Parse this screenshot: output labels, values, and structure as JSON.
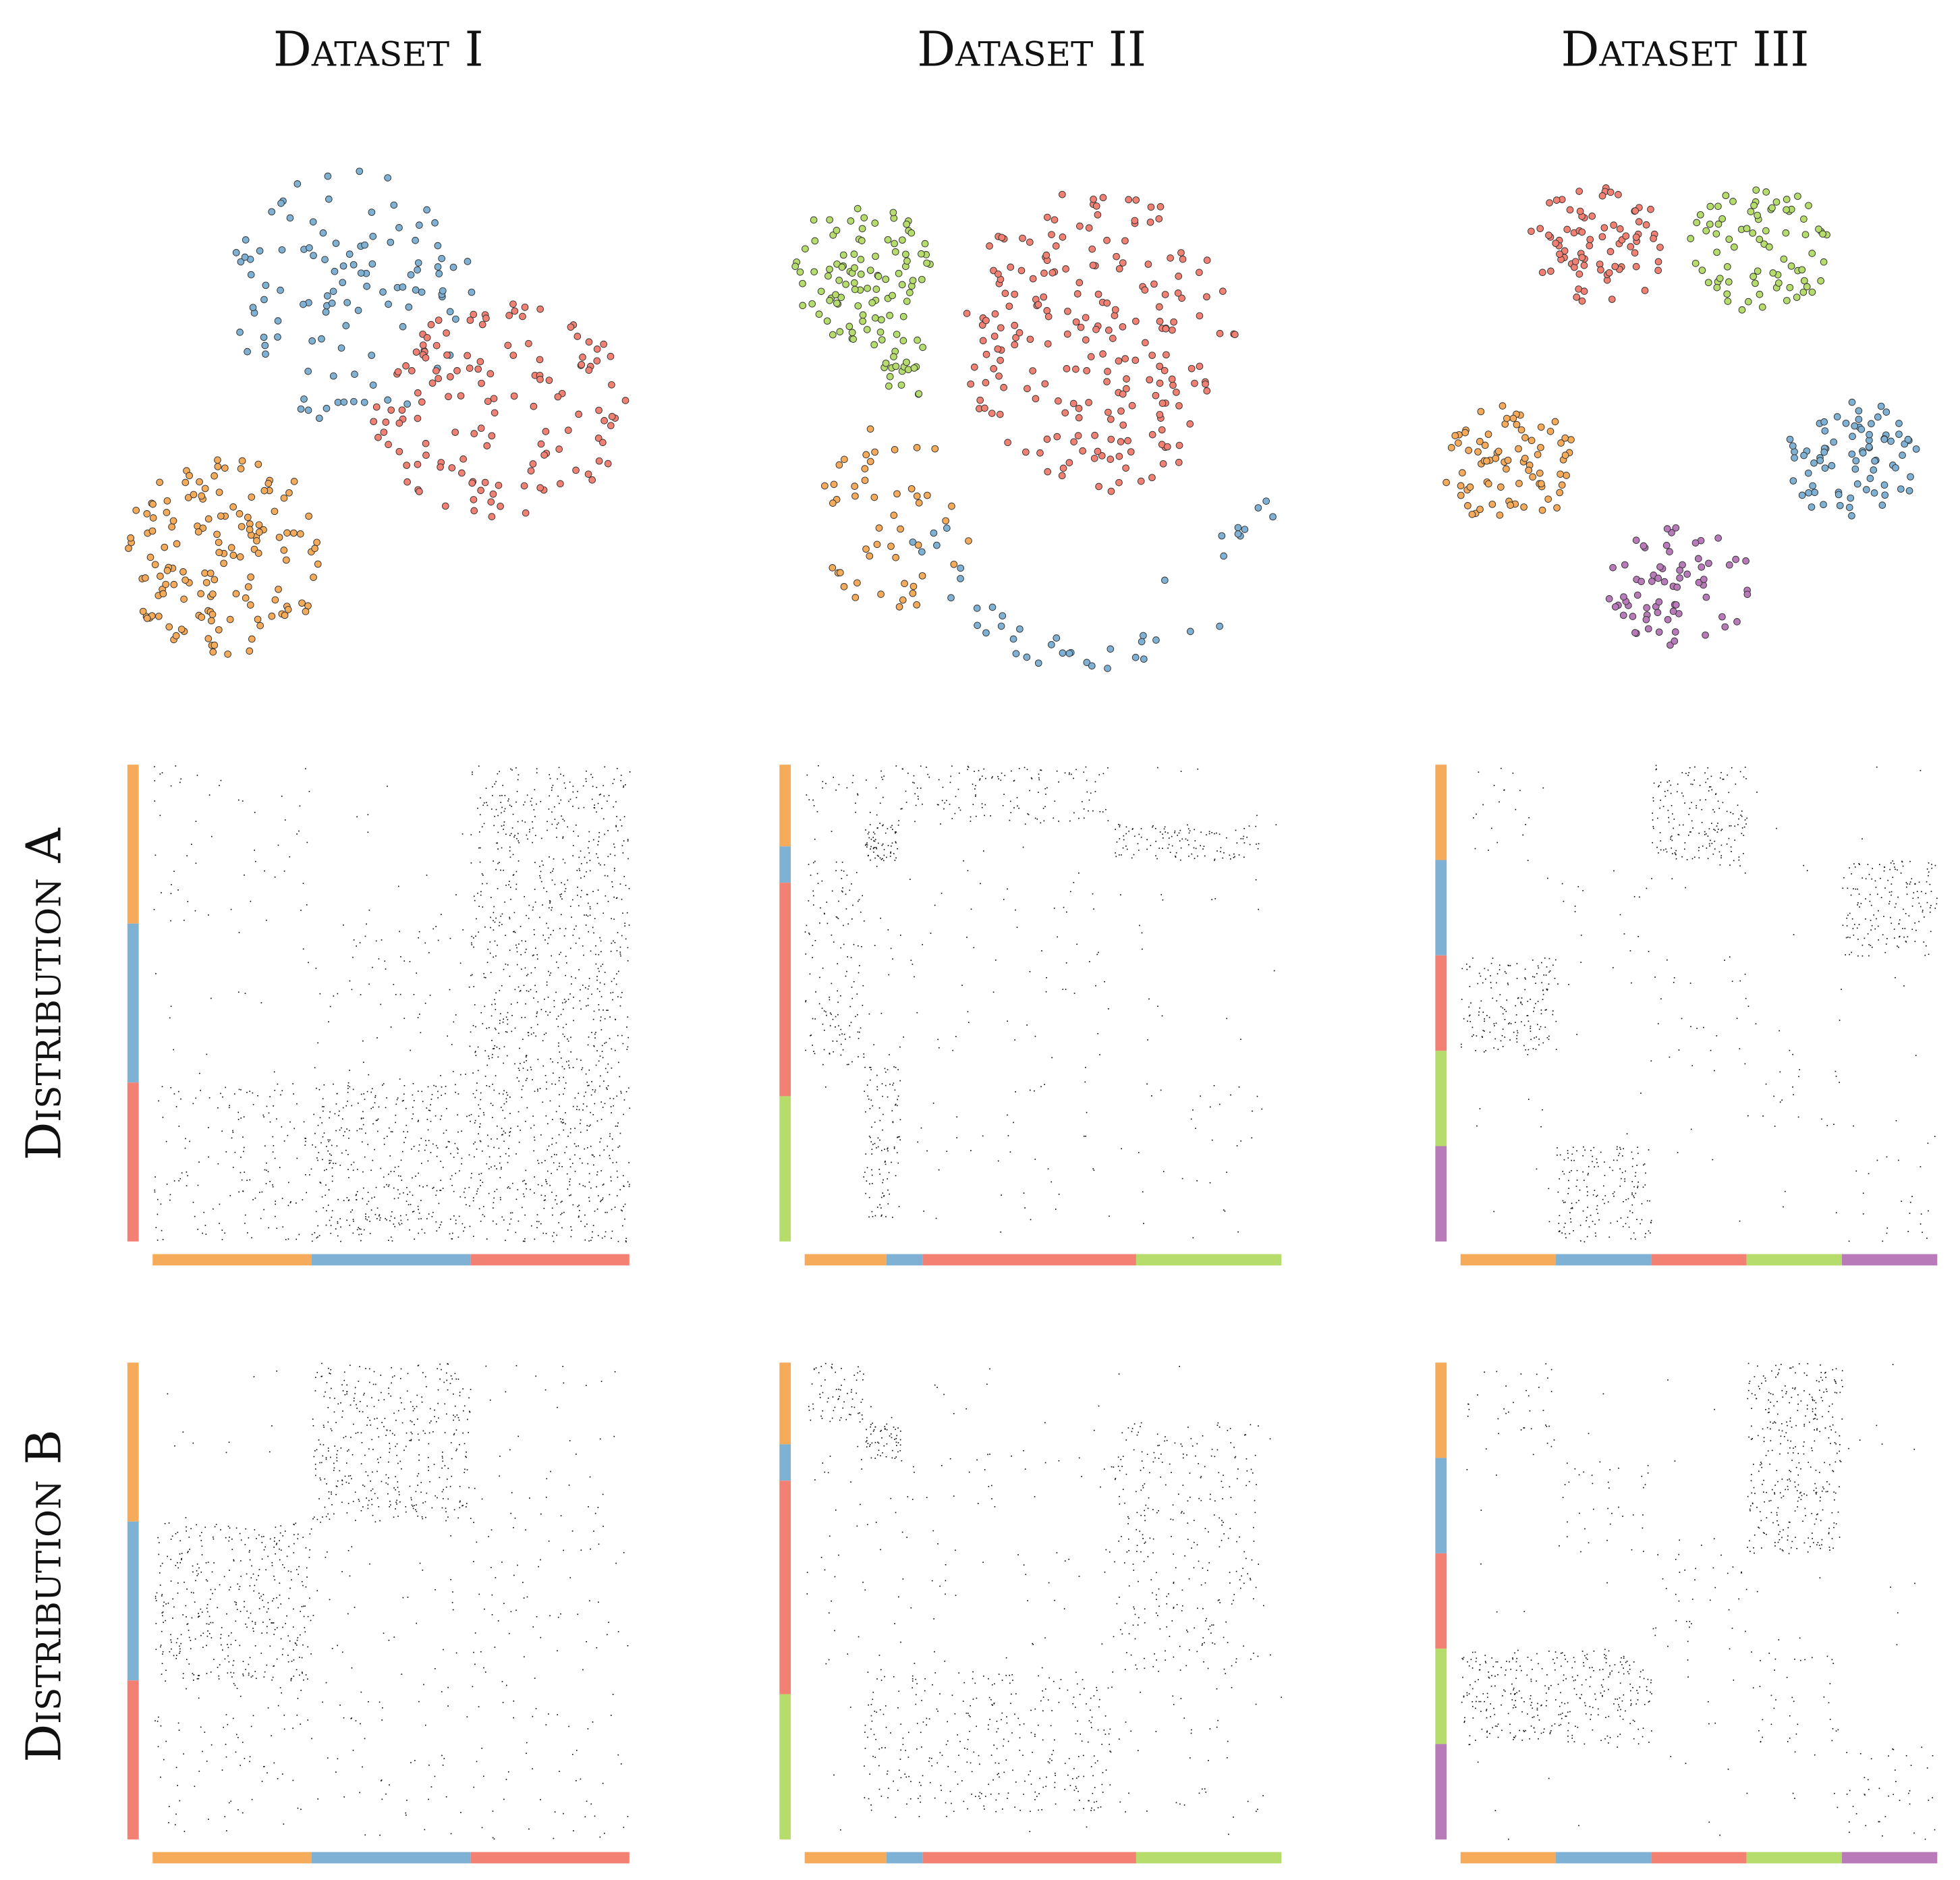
{
  "figure": {
    "col_titles": [
      "Dataset I",
      "Dataset II",
      "Dataset III"
    ],
    "row_titles": [
      "Distribution A",
      "Distribution B"
    ]
  },
  "colors": {
    "orange": "#f5ab5a",
    "blue": "#7eb1d3",
    "red": "#f38173",
    "green": "#b6dc6c",
    "purple": "#b87ab8",
    "dot": "#111111",
    "point_edge": "#333333"
  },
  "chart_data": [
    {
      "type": "scatter",
      "title": "Dataset I",
      "clusters": [
        {
          "color": "orange",
          "center": [
            180,
            440
          ],
          "spread": [
            82,
            82
          ],
          "n": 150
        },
        {
          "color": "blue",
          "center": [
            280,
            235
          ],
          "spread": [
            105,
            100
          ],
          "n": 110
        },
        {
          "color": "red",
          "center": [
            400,
            325
          ],
          "spread": [
            105,
            85
          ],
          "n": 140
        }
      ]
    },
    {
      "type": "scatter",
      "title": "Dataset II",
      "clusters": [
        {
          "color": "green",
          "center": [
            683,
            215
          ],
          "spread": [
            55,
            60
          ],
          "n": 100
        },
        {
          "color": "green",
          "center": [
            720,
            290
          ],
          "spread": [
            20,
            25
          ],
          "n": 20
        },
        {
          "color": "red",
          "center": [
            870,
            270
          ],
          "spread": [
            110,
            120
          ],
          "n": 220
        },
        {
          "color": "orange",
          "center": [
            710,
            410
          ],
          "spread": [
            60,
            75
          ],
          "n": 50
        },
        {
          "color": "blue",
          "type": "arc",
          "n": 45
        }
      ]
    },
    {
      "type": "scatter",
      "title": "Dataset III",
      "clusters": [
        {
          "color": "red",
          "center": [
            1268,
            193
          ],
          "spread": [
            58,
            50
          ],
          "n": 80
        },
        {
          "color": "green",
          "center": [
            1395,
            197
          ],
          "spread": [
            58,
            50
          ],
          "n": 80
        },
        {
          "color": "orange",
          "center": [
            1197,
            368
          ],
          "spread": [
            55,
            48
          ],
          "n": 80
        },
        {
          "color": "blue",
          "center": [
            1470,
            365
          ],
          "spread": [
            55,
            48
          ],
          "n": 80
        },
        {
          "color": "purple",
          "center": [
            1330,
            465
          ],
          "spread": [
            60,
            48
          ],
          "n": 70
        }
      ]
    },
    {
      "type": "heatmap",
      "row": "Distribution A",
      "dataset": "Dataset I",
      "segments": [
        {
          "color": "orange",
          "size": 1
        },
        {
          "color": "blue",
          "size": 1
        },
        {
          "color": "red",
          "size": 1
        }
      ],
      "blocks": [
        {
          "rows": [
            0,
            1
          ],
          "cols": [
            0,
            1
          ],
          "density": 0.05
        },
        {
          "rows": [
            0,
            3
          ],
          "cols": [
            2,
            3
          ],
          "density": 0.45
        },
        {
          "rows": [
            1,
            2
          ],
          "cols": [
            1,
            2
          ],
          "density": 0.08
        },
        {
          "rows": [
            2,
            3
          ],
          "cols": [
            0,
            1
          ],
          "density": 0.2
        },
        {
          "rows": [
            2,
            3
          ],
          "cols": [
            1,
            2
          ],
          "density": 0.5
        },
        {
          "rows": [
            2,
            3
          ],
          "cols": [
            2,
            3
          ],
          "density": 0.06
        }
      ]
    },
    {
      "type": "heatmap",
      "row": "Distribution A",
      "dataset": "Dataset II",
      "segments": [
        {
          "color": "orange",
          "size": 0.18
        },
        {
          "color": "blue",
          "size": 0.08
        },
        {
          "color": "red",
          "size": 0.47
        },
        {
          "color": "green",
          "size": 0.32
        }
      ],
      "blocks": [
        {
          "rows": [
            0,
            0.13
          ],
          "cols": [
            0,
            0.18
          ],
          "density": 0.2
        },
        {
          "rows": [
            0,
            0.13
          ],
          "cols": [
            0.2,
            0.68
          ],
          "density": 0.35
        },
        {
          "rows": [
            0.13,
            0.21
          ],
          "cols": [
            0.13,
            0.21
          ],
          "density": 1.6
        },
        {
          "rows": [
            0.13,
            0.21
          ],
          "cols": [
            0.68,
            1
          ],
          "density": 0.7
        },
        {
          "rows": [
            0.21,
            0.66
          ],
          "cols": [
            0,
            0.13
          ],
          "density": 0.35
        },
        {
          "rows": [
            0.21,
            0.68
          ],
          "cols": [
            0.13,
            0.68
          ],
          "density": 0.03
        },
        {
          "rows": [
            0.66,
            1
          ],
          "cols": [
            0.13,
            0.21
          ],
          "density": 0.6
        },
        {
          "rows": [
            0.66,
            1
          ],
          "cols": [
            0.21,
            1
          ],
          "density": 0.03
        }
      ]
    },
    {
      "type": "heatmap",
      "row": "Distribution A",
      "dataset": "Dataset III",
      "segments": [
        {
          "color": "orange",
          "size": 1
        },
        {
          "color": "blue",
          "size": 1
        },
        {
          "color": "red",
          "size": 1
        },
        {
          "color": "green",
          "size": 1
        },
        {
          "color": "purple",
          "size": 1
        }
      ],
      "blocks": [
        {
          "rows": [
            0,
            1
          ],
          "cols": [
            0,
            1
          ],
          "density": 0.06
        },
        {
          "rows": [
            0,
            1
          ],
          "cols": [
            2,
            3
          ],
          "density": 0.6
        },
        {
          "rows": [
            1,
            2
          ],
          "cols": [
            1,
            2
          ],
          "density": 0.06
        },
        {
          "rows": [
            1,
            2
          ],
          "cols": [
            4,
            5
          ],
          "density": 0.6
        },
        {
          "rows": [
            2,
            3
          ],
          "cols": [
            0,
            1
          ],
          "density": 0.6
        },
        {
          "rows": [
            2,
            3
          ],
          "cols": [
            2,
            3
          ],
          "density": 0.06
        },
        {
          "rows": [
            3,
            4
          ],
          "cols": [
            3,
            4
          ],
          "density": 0.06
        },
        {
          "rows": [
            4,
            5
          ],
          "cols": [
            1,
            2
          ],
          "density": 0.6
        },
        {
          "rows": [
            4,
            5
          ],
          "cols": [
            4,
            5
          ],
          "density": 0.06
        }
      ]
    },
    {
      "type": "heatmap",
      "row": "Distribution B",
      "dataset": "Dataset I",
      "segments": [
        {
          "color": "orange",
          "size": 1
        },
        {
          "color": "blue",
          "size": 1
        },
        {
          "color": "red",
          "size": 1
        }
      ],
      "blocks": [
        {
          "rows": [
            0,
            1
          ],
          "cols": [
            1,
            2
          ],
          "density": 0.5
        },
        {
          "rows": [
            0,
            1
          ],
          "cols": [
            2,
            3
          ],
          "density": 0.04
        },
        {
          "rows": [
            1,
            2
          ],
          "cols": [
            0,
            1
          ],
          "density": 0.5
        },
        {
          "rows": [
            1,
            2
          ],
          "cols": [
            1,
            2
          ],
          "density": 0.03
        },
        {
          "rows": [
            1,
            3
          ],
          "cols": [
            2,
            3
          ],
          "density": 0.06
        },
        {
          "rows": [
            2,
            3
          ],
          "cols": [
            0,
            2
          ],
          "density": 0.07
        }
      ]
    },
    {
      "type": "heatmap",
      "row": "Distribution B",
      "dataset": "Dataset II",
      "segments": [
        {
          "color": "orange",
          "size": 0.18
        },
        {
          "color": "blue",
          "size": 0.08
        },
        {
          "color": "red",
          "size": 0.47
        },
        {
          "color": "green",
          "size": 0.32
        }
      ],
      "blocks": [
        {
          "rows": [
            0,
            0.13
          ],
          "cols": [
            0,
            0.13
          ],
          "density": 0.6
        },
        {
          "rows": [
            0.13,
            0.21
          ],
          "cols": [
            0.13,
            0.21
          ],
          "density": 1.4
        },
        {
          "rows": [
            0.13,
            0.68
          ],
          "cols": [
            0.68,
            1
          ],
          "density": 0.25
        },
        {
          "rows": [
            0.2,
            0.68
          ],
          "cols": [
            0,
            0.68
          ],
          "density": 0.04
        },
        {
          "rows": [
            0.68,
            1
          ],
          "cols": [
            0.13,
            0.68
          ],
          "density": 0.3
        },
        {
          "rows": [
            0.68,
            1
          ],
          "cols": [
            0.68,
            1
          ],
          "density": 0.04
        }
      ]
    },
    {
      "type": "heatmap",
      "row": "Distribution B",
      "dataset": "Dataset III",
      "segments": [
        {
          "color": "orange",
          "size": 1
        },
        {
          "color": "blue",
          "size": 1
        },
        {
          "color": "red",
          "size": 1
        },
        {
          "color": "green",
          "size": 1
        },
        {
          "color": "purple",
          "size": 1
        }
      ],
      "blocks": [
        {
          "rows": [
            0,
            1
          ],
          "cols": [
            0,
            1
          ],
          "density": 0.12
        },
        {
          "rows": [
            0,
            2
          ],
          "cols": [
            3,
            4
          ],
          "density": 0.6
        },
        {
          "rows": [
            1,
            2
          ],
          "cols": [
            1,
            2
          ],
          "density": 0.12
        },
        {
          "rows": [
            2,
            3
          ],
          "cols": [
            2,
            3
          ],
          "density": 0.12
        },
        {
          "rows": [
            3,
            4
          ],
          "cols": [
            0,
            2
          ],
          "density": 0.6
        },
        {
          "rows": [
            3,
            4
          ],
          "cols": [
            3,
            4
          ],
          "density": 0.12
        },
        {
          "rows": [
            4,
            5
          ],
          "cols": [
            4,
            5
          ],
          "density": 0.12
        }
      ]
    }
  ]
}
